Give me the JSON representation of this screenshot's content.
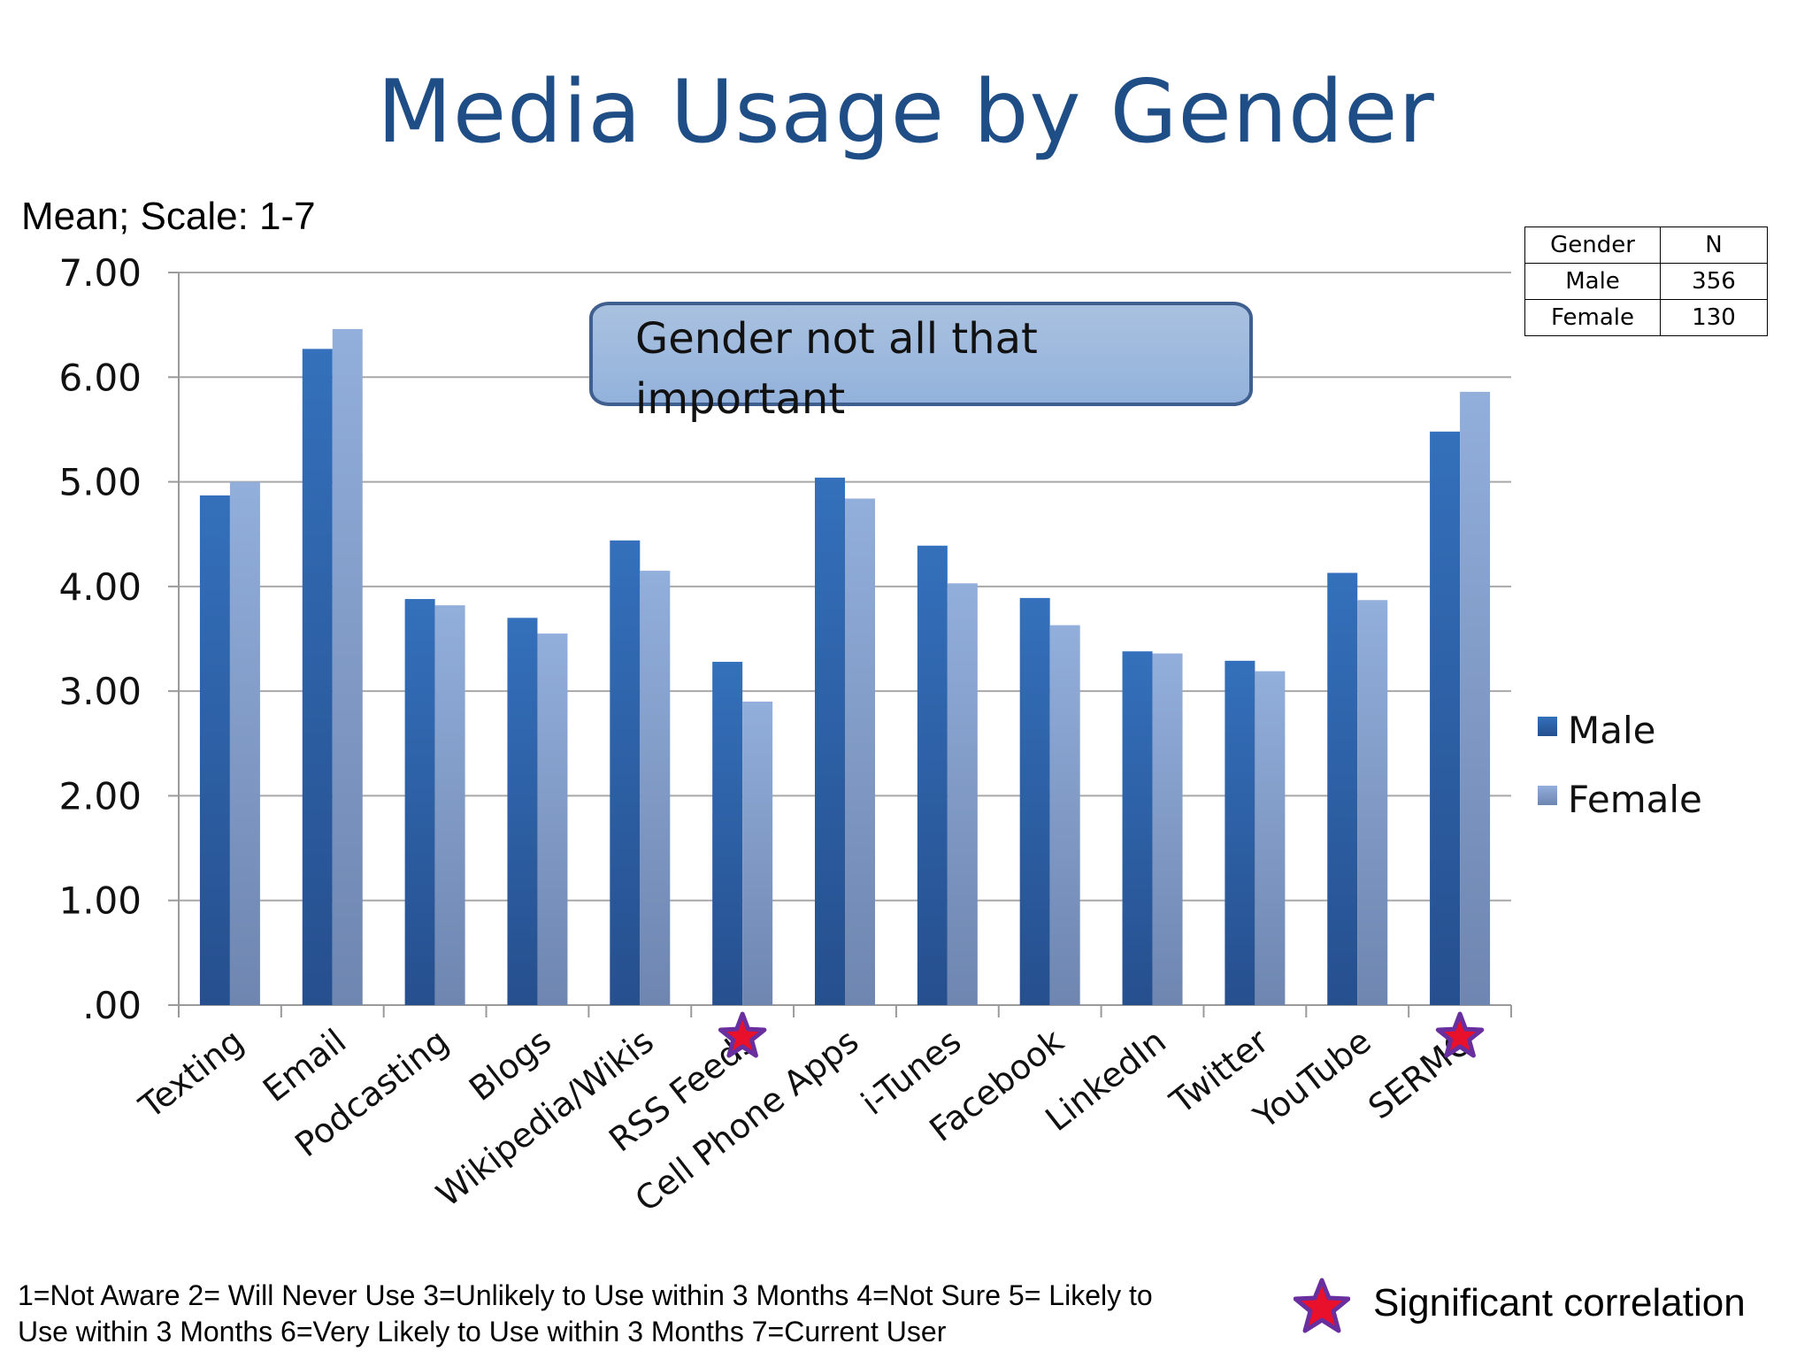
{
  "title": "Media Usage by Gender",
  "subtitle": "Mean; Scale: 1-7",
  "n_table": {
    "header": [
      "Gender",
      "N"
    ],
    "rows": [
      [
        "Male",
        "356"
      ],
      [
        "Female",
        "130"
      ]
    ]
  },
  "callout": "Gender not all that important",
  "footnote": "1=Not Aware  2= Will Never Use  3=Unlikely to Use within 3 Months  4=Not Sure  5= Likely to Use within 3 Months  6=Very Likely to Use within 3 Months  7=Current User",
  "significance_legend": "Significant correlation",
  "colors": {
    "male": "#2e5fa0",
    "female": "#8ea8d4",
    "title": "#1f4e87",
    "star_fill": "#e8102a",
    "star_stroke": "#6a2f9e"
  },
  "chart_data": {
    "type": "bar",
    "categories": [
      "Texting",
      "Email",
      "Podcasting",
      "Blogs",
      "Wikipedia/Wikis",
      "RSS Feeds",
      "Cell Phone Apps",
      "i-Tunes",
      "Facebook",
      "LinkedIn",
      "Twitter",
      "YouTube",
      "SERMO"
    ],
    "series": [
      {
        "name": "Male",
        "values": [
          4.87,
          6.27,
          3.88,
          3.7,
          4.44,
          3.28,
          5.04,
          4.39,
          3.89,
          3.38,
          3.29,
          4.13,
          5.48
        ]
      },
      {
        "name": "Female",
        "values": [
          5.0,
          6.46,
          3.82,
          3.55,
          4.15,
          2.9,
          4.84,
          4.03,
          3.63,
          3.36,
          3.19,
          3.87,
          5.86
        ]
      }
    ],
    "significant": [
      "RSS Feeds",
      "SERMO"
    ],
    "ylim": [
      0,
      7
    ],
    "yticks": [
      ".00",
      "1.00",
      "2.00",
      "3.00",
      "4.00",
      "5.00",
      "6.00",
      "7.00"
    ],
    "grid": true,
    "legend": "right"
  }
}
